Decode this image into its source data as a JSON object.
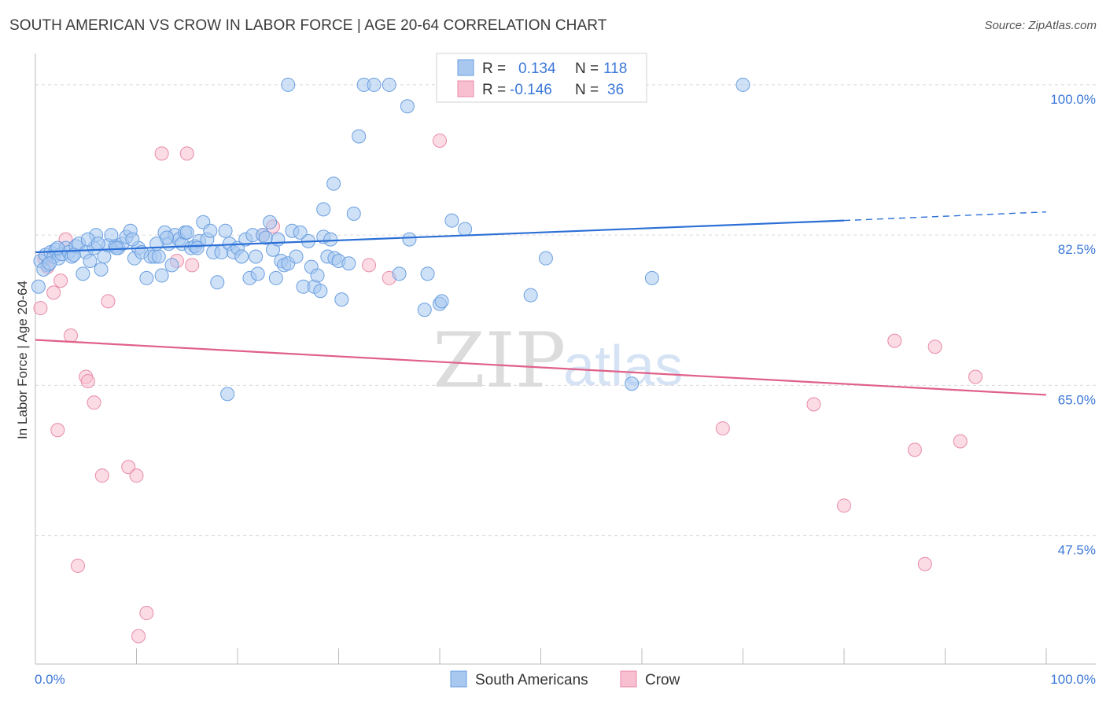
{
  "title": "SOUTH AMERICAN VS CROW IN LABOR FORCE | AGE 20-64 CORRELATION CHART",
  "source": "Source: ZipAtlas.com",
  "watermark": {
    "zip": "ZIP",
    "atlas": "atlas"
  },
  "colors": {
    "blue_fill": "#a8c8f0",
    "blue_stroke": "#6a9fe0",
    "blue_line": "#2b6fd6",
    "pink_fill": "#f8bfd0",
    "pink_stroke": "#e88aa8",
    "pink_line": "#e06088",
    "tick_color": "#3c78d8",
    "grid": "#d9d9d9"
  },
  "stats_legend": {
    "rows": [
      {
        "r_label": "R =",
        "r_value": "0.134",
        "n_label": "N =",
        "n_value": "118",
        "series": "blue"
      },
      {
        "r_label": "R =",
        "r_value": "-0.146",
        "n_label": "N =",
        "n_value": "36",
        "series": "pink"
      }
    ]
  },
  "bottom_legend": [
    "South Americans",
    "Crow"
  ],
  "chart_data": {
    "type": "scatter",
    "title": "SOUTH AMERICAN VS CROW IN LABOR FORCE | AGE 20-64 CORRELATION CHART",
    "xlabel": "",
    "ylabel": "In Labor Force | Age 20-64",
    "xlim": [
      0,
      100
    ],
    "ylim": [
      31,
      101
    ],
    "x_tick_labels": [
      "0.0%",
      "100.0%"
    ],
    "y_ticks": [
      47.5,
      65.0,
      82.5,
      100.0
    ],
    "y_tick_labels": [
      "47.5%",
      "65.0%",
      "82.5%",
      "100.0%"
    ],
    "series": [
      {
        "name": "South Americans",
        "color": "blue",
        "trend": {
          "x0": 0,
          "y0": 80.5,
          "x1": 80,
          "y1": 84.2,
          "dash_x1": 100,
          "dash_y1": 85.2
        },
        "points": [
          [
            0.5,
            79.5
          ],
          [
            1.0,
            80.2
          ],
          [
            1.2,
            79.0
          ],
          [
            1.5,
            80.5
          ],
          [
            1.8,
            80.0
          ],
          [
            2.0,
            80.8
          ],
          [
            2.3,
            79.8
          ],
          [
            2.6,
            80.3
          ],
          [
            3.0,
            81.0
          ],
          [
            3.3,
            80.5
          ],
          [
            3.6,
            80.0
          ],
          [
            4.0,
            81.2
          ],
          [
            4.3,
            81.5
          ],
          [
            4.7,
            78.0
          ],
          [
            5.0,
            80.5
          ],
          [
            5.4,
            79.5
          ],
          [
            5.8,
            81.0
          ],
          [
            6.0,
            82.5
          ],
          [
            6.5,
            78.5
          ],
          [
            6.8,
            80.0
          ],
          [
            7.2,
            81.3
          ],
          [
            7.5,
            82.5
          ],
          [
            7.9,
            81.2
          ],
          [
            8.2,
            81.0
          ],
          [
            8.6,
            81.5
          ],
          [
            9.0,
            82.3
          ],
          [
            9.4,
            83.0
          ],
          [
            9.8,
            79.8
          ],
          [
            10.2,
            81.0
          ],
          [
            10.5,
            80.5
          ],
          [
            11.0,
            77.5
          ],
          [
            11.4,
            80.0
          ],
          [
            11.8,
            80.0
          ],
          [
            12.2,
            80.0
          ],
          [
            12.5,
            77.8
          ],
          [
            12.8,
            82.8
          ],
          [
            13.2,
            81.5
          ],
          [
            13.5,
            79.0
          ],
          [
            13.8,
            82.5
          ],
          [
            14.2,
            82.0
          ],
          [
            14.5,
            81.5
          ],
          [
            14.8,
            82.8
          ],
          [
            15.0,
            82.8
          ],
          [
            15.4,
            81.0
          ],
          [
            15.8,
            81.2
          ],
          [
            16.2,
            81.8
          ],
          [
            16.6,
            84.0
          ],
          [
            17.0,
            82.0
          ],
          [
            17.3,
            83.0
          ],
          [
            17.6,
            80.5
          ],
          [
            18.0,
            77.0
          ],
          [
            18.4,
            80.5
          ],
          [
            18.8,
            83.0
          ],
          [
            19.2,
            81.5
          ],
          [
            19.6,
            80.5
          ],
          [
            20.0,
            81.0
          ],
          [
            20.4,
            80.0
          ],
          [
            20.8,
            82.0
          ],
          [
            21.2,
            77.5
          ],
          [
            21.5,
            82.5
          ],
          [
            21.8,
            80.0
          ],
          [
            22.0,
            78.0
          ],
          [
            22.5,
            82.5
          ],
          [
            22.8,
            82.2
          ],
          [
            23.2,
            84.0
          ],
          [
            23.5,
            80.8
          ],
          [
            23.8,
            77.5
          ],
          [
            24.0,
            82.0
          ],
          [
            24.3,
            79.5
          ],
          [
            24.6,
            79.0
          ],
          [
            25.0,
            79.2
          ],
          [
            25.4,
            83.0
          ],
          [
            25.8,
            80.0
          ],
          [
            26.2,
            82.8
          ],
          [
            26.5,
            76.5
          ],
          [
            27.0,
            81.8
          ],
          [
            27.3,
            78.8
          ],
          [
            27.6,
            76.5
          ],
          [
            27.9,
            77.8
          ],
          [
            28.2,
            76.0
          ],
          [
            28.5,
            82.3
          ],
          [
            28.9,
            80.0
          ],
          [
            29.2,
            82.0
          ],
          [
            29.6,
            79.8
          ],
          [
            30.0,
            79.5
          ],
          [
            30.3,
            75.0
          ],
          [
            31.0,
            79.2
          ],
          [
            19.0,
            64.0
          ],
          [
            25.0,
            100.0
          ],
          [
            32.5,
            100.0
          ],
          [
            33.5,
            100.0
          ],
          [
            35.0,
            100.0
          ],
          [
            36.8,
            97.5
          ],
          [
            32.0,
            94.0
          ],
          [
            29.5,
            88.5
          ],
          [
            28.5,
            85.5
          ],
          [
            31.5,
            85.0
          ],
          [
            37.0,
            82.0
          ],
          [
            36.0,
            78.0
          ],
          [
            38.5,
            73.8
          ],
          [
            40.0,
            74.5
          ],
          [
            40.2,
            74.8
          ],
          [
            38.8,
            78.0
          ],
          [
            41.2,
            84.2
          ],
          [
            42.5,
            83.2
          ],
          [
            49.0,
            75.5
          ],
          [
            50.5,
            79.8
          ],
          [
            59.0,
            65.2
          ],
          [
            61.0,
            77.5
          ],
          [
            70.0,
            100.0
          ],
          [
            0.8,
            78.5
          ],
          [
            1.4,
            79.2
          ],
          [
            2.2,
            81.0
          ],
          [
            3.8,
            80.2
          ],
          [
            5.2,
            82.0
          ],
          [
            6.2,
            81.5
          ],
          [
            8.0,
            81.0
          ],
          [
            9.6,
            82.0
          ],
          [
            12.0,
            81.5
          ],
          [
            13.0,
            82.2
          ],
          [
            16.0,
            81.0
          ],
          [
            0.3,
            76.5
          ]
        ]
      },
      {
        "name": "Crow",
        "color": "pink",
        "trend": {
          "x0": 0,
          "y0": 70.3,
          "x1": 100,
          "y1": 63.9
        },
        "points": [
          [
            0.5,
            74.0
          ],
          [
            1.2,
            78.8
          ],
          [
            1.8,
            75.8
          ],
          [
            2.5,
            77.2
          ],
          [
            3.0,
            82.0
          ],
          [
            3.5,
            70.8
          ],
          [
            2.2,
            59.8
          ],
          [
            5.0,
            66.0
          ],
          [
            5.2,
            65.5
          ],
          [
            5.8,
            63.0
          ],
          [
            6.6,
            54.5
          ],
          [
            7.2,
            74.8
          ],
          [
            9.2,
            55.5
          ],
          [
            10.0,
            54.5
          ],
          [
            4.2,
            44.0
          ],
          [
            11.0,
            38.5
          ],
          [
            10.2,
            35.8
          ],
          [
            12.5,
            92.0
          ],
          [
            15.0,
            92.0
          ],
          [
            14.0,
            79.5
          ],
          [
            15.5,
            79.0
          ],
          [
            22.5,
            82.5
          ],
          [
            23.5,
            83.5
          ],
          [
            33.0,
            79.0
          ],
          [
            35.0,
            77.5
          ],
          [
            40.0,
            93.5
          ],
          [
            68.0,
            60.0
          ],
          [
            77.0,
            62.8
          ],
          [
            80.0,
            51.0
          ],
          [
            85.0,
            70.2
          ],
          [
            87.0,
            57.5
          ],
          [
            88.0,
            44.2
          ],
          [
            89.0,
            69.5
          ],
          [
            91.5,
            58.5
          ],
          [
            93.0,
            66.0
          ],
          [
            0.9,
            79.8
          ]
        ]
      }
    ]
  }
}
